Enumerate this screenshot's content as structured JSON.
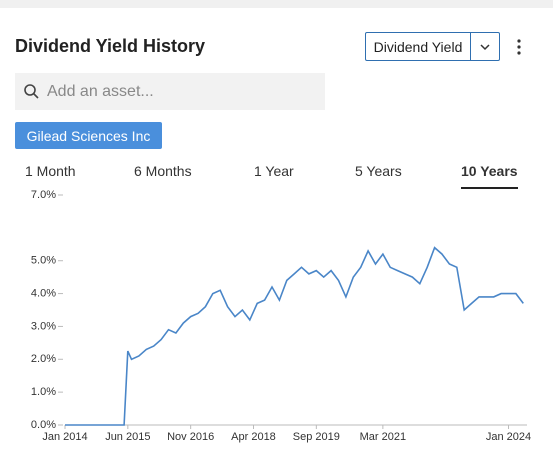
{
  "header": {
    "title": "Dividend Yield History",
    "metric_select": "Dividend Yield"
  },
  "search": {
    "placeholder": "Add an asset..."
  },
  "asset_button": "Gilead Sciences Inc",
  "tabs": [
    "1 Month",
    "6 Months",
    "1 Year",
    "5 Years",
    "10 Years"
  ],
  "active_tab": 4,
  "chart_data": {
    "type": "line",
    "color": "#4a86c8",
    "x": [
      "2014-01",
      "2014-03",
      "2014-05",
      "2014-07",
      "2014-09",
      "2014-11",
      "2015-01",
      "2015-03",
      "2015-05",
      "2015-06",
      "2015-07",
      "2015-09",
      "2015-11",
      "2016-01",
      "2016-03",
      "2016-05",
      "2016-07",
      "2016-09",
      "2016-11",
      "2017-01",
      "2017-03",
      "2017-05",
      "2017-07",
      "2017-09",
      "2017-11",
      "2018-01",
      "2018-03",
      "2018-05",
      "2018-07",
      "2018-09",
      "2018-11",
      "2019-01",
      "2019-03",
      "2019-05",
      "2019-07",
      "2019-09",
      "2019-11",
      "2020-01",
      "2020-03",
      "2020-05",
      "2020-07",
      "2020-09",
      "2020-11",
      "2021-01",
      "2021-03",
      "2021-05",
      "2021-07",
      "2021-09",
      "2021-11",
      "2022-01",
      "2022-03",
      "2022-05",
      "2022-07",
      "2022-09",
      "2022-11",
      "2023-01",
      "2023-03",
      "2023-05",
      "2023-07",
      "2023-09",
      "2023-11",
      "2024-01",
      "2024-03",
      "2024-05"
    ],
    "values": [
      0,
      0,
      0,
      0,
      0,
      0,
      0,
      0,
      0,
      2.25,
      2.0,
      2.1,
      2.3,
      2.4,
      2.6,
      2.9,
      2.8,
      3.1,
      3.3,
      3.4,
      3.6,
      4.0,
      4.1,
      3.6,
      3.3,
      3.5,
      3.2,
      3.7,
      3.8,
      4.2,
      3.8,
      4.4,
      4.6,
      4.8,
      4.6,
      4.7,
      4.5,
      4.7,
      4.4,
      3.9,
      4.5,
      4.8,
      5.3,
      4.9,
      5.2,
      4.8,
      4.7,
      4.6,
      4.5,
      4.3,
      4.8,
      5.4,
      5.2,
      4.9,
      4.8,
      3.5,
      3.7,
      3.9,
      3.9,
      3.9,
      4.0,
      4.0,
      4.0,
      3.7
    ],
    "xlim": [
      "2014-01",
      "2024-06"
    ],
    "xticks": [
      {
        "value": "2014-01",
        "label": "Jan 2014"
      },
      {
        "value": "2015-06",
        "label": "Jun 2015"
      },
      {
        "value": "2016-11",
        "label": "Nov 2016"
      },
      {
        "value": "2018-04",
        "label": "Apr 2018"
      },
      {
        "value": "2019-09",
        "label": "Sep 2019"
      },
      {
        "value": "2021-03",
        "label": "Mar 2021"
      },
      {
        "value": "2024-01",
        "label": "Jan 2024"
      }
    ],
    "ylim": [
      0,
      7
    ],
    "yticks": [
      {
        "value": 0,
        "label": "0.0%"
      },
      {
        "value": 1,
        "label": "1.0%"
      },
      {
        "value": 2,
        "label": "2.0%"
      },
      {
        "value": 3,
        "label": "3.0%"
      },
      {
        "value": 4,
        "label": "4.0%"
      },
      {
        "value": 5,
        "label": "5.0%"
      },
      {
        "value": 7,
        "label": "7.0%"
      }
    ]
  }
}
